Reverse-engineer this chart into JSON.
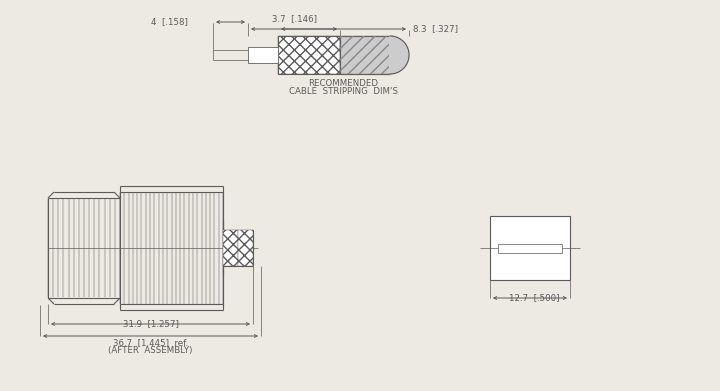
{
  "bg_color": "#ede9e3",
  "line_color": "#5a5a5a",
  "lw": 0.8,
  "tlw": 0.5,
  "fig_width": 7.2,
  "fig_height": 3.91,
  "label_rec1": "RECOMMENDED",
  "label_rec2": "CABLE  STRIPPING  DIM’S",
  "label_rec2b": "CABLE  STRIPPING  DIM'S",
  "dim_4": "4  [.158]",
  "dim_37": "3.7  [.146]",
  "dim_83": "8.3  [.327]",
  "dim_319": "31.9  [1.257]",
  "dim_367": "36.7  [1.445]  ref.",
  "dim_aftr": "(AFTER  ASSEMBLY)",
  "dim_127": "12.7  [.500]",
  "font_size": 6.2
}
